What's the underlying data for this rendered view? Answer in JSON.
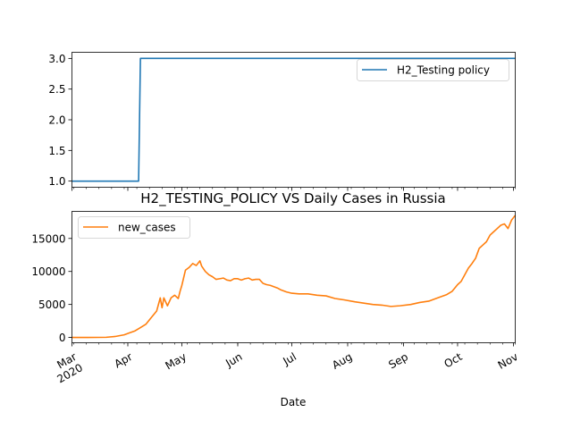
{
  "chart_data": [
    {
      "type": "line",
      "title": "",
      "xlabel": "",
      "ylabel": "",
      "ylim": [
        0.9,
        3.1
      ],
      "yticks": [
        1.0,
        1.5,
        2.0,
        2.5,
        3.0
      ],
      "ytick_labels": [
        "1.0",
        "1.5",
        "2.0",
        "2.5",
        "3.0"
      ],
      "legend_position": "upper right",
      "series": [
        {
          "name": "H2_Testing policy",
          "color": "#1f77b4",
          "x": [
            "2020-03-01",
            "2020-04-07",
            "2020-04-08",
            "2020-11-02"
          ],
          "values": [
            1,
            1,
            3,
            3
          ]
        }
      ]
    },
    {
      "type": "line",
      "title": "H2_TESTING_POLICY VS Daily Cases in Russia",
      "xlabel": "Date",
      "ylabel": "",
      "ylim": [
        -800,
        19100
      ],
      "yticks": [
        0,
        5000,
        10000,
        15000
      ],
      "ytick_labels": [
        "0",
        "5000",
        "10000",
        "15000"
      ],
      "x_range": [
        "2020-03-01",
        "2020-11-02"
      ],
      "x_major_ticks": [
        {
          "date": "2020-03-01",
          "label": "Mar\n2020"
        },
        {
          "date": "2020-04-01",
          "label": "Apr"
        },
        {
          "date": "2020-05-01",
          "label": "May"
        },
        {
          "date": "2020-06-01",
          "label": "Jun"
        },
        {
          "date": "2020-07-01",
          "label": "Jul"
        },
        {
          "date": "2020-08-01",
          "label": "Aug"
        },
        {
          "date": "2020-09-01",
          "label": "Sep"
        },
        {
          "date": "2020-10-01",
          "label": "Oct"
        },
        {
          "date": "2020-11-01",
          "label": "Nov"
        }
      ],
      "legend_position": "upper left",
      "series": [
        {
          "name": "new_cases",
          "color": "#ff7f0e",
          "x": [
            "2020-03-01",
            "2020-03-10",
            "2020-03-20",
            "2020-03-25",
            "2020-03-30",
            "2020-04-02",
            "2020-04-05",
            "2020-04-08",
            "2020-04-11",
            "2020-04-14",
            "2020-04-17",
            "2020-04-19",
            "2020-04-20",
            "2020-04-21",
            "2020-04-23",
            "2020-04-25",
            "2020-04-27",
            "2020-04-29",
            "2020-04-30",
            "2020-05-01",
            "2020-05-03",
            "2020-05-05",
            "2020-05-07",
            "2020-05-09",
            "2020-05-11",
            "2020-05-12",
            "2020-05-14",
            "2020-05-16",
            "2020-05-18",
            "2020-05-20",
            "2020-05-22",
            "2020-05-24",
            "2020-05-26",
            "2020-05-28",
            "2020-05-30",
            "2020-06-01",
            "2020-06-03",
            "2020-06-05",
            "2020-06-07",
            "2020-06-09",
            "2020-06-11",
            "2020-06-13",
            "2020-06-15",
            "2020-06-17",
            "2020-06-19",
            "2020-06-21",
            "2020-06-23",
            "2020-06-25",
            "2020-06-28",
            "2020-07-01",
            "2020-07-05",
            "2020-07-10",
            "2020-07-15",
            "2020-07-20",
            "2020-07-25",
            "2020-07-30",
            "2020-08-05",
            "2020-08-10",
            "2020-08-15",
            "2020-08-20",
            "2020-08-25",
            "2020-08-30",
            "2020-09-05",
            "2020-09-10",
            "2020-09-15",
            "2020-09-20",
            "2020-09-25",
            "2020-09-28",
            "2020-10-01",
            "2020-10-03",
            "2020-10-05",
            "2020-10-07",
            "2020-10-09",
            "2020-10-11",
            "2020-10-13",
            "2020-10-15",
            "2020-10-17",
            "2020-10-19",
            "2020-10-21",
            "2020-10-23",
            "2020-10-25",
            "2020-10-27",
            "2020-10-29",
            "2020-10-31",
            "2020-11-02"
          ],
          "values": [
            0,
            0,
            30,
            150,
            400,
            700,
            1000,
            1500,
            2000,
            3000,
            4000,
            6000,
            4500,
            6000,
            4800,
            6000,
            6400,
            5900,
            7000,
            7900,
            10200,
            10600,
            11200,
            10900,
            11600,
            10800,
            10000,
            9500,
            9200,
            8800,
            8900,
            9000,
            8700,
            8600,
            8900,
            8900,
            8700,
            8900,
            9000,
            8700,
            8800,
            8800,
            8200,
            8000,
            7900,
            7700,
            7500,
            7200,
            6900,
            6700,
            6600,
            6600,
            6400,
            6300,
            5900,
            5700,
            5400,
            5200,
            5000,
            4900,
            4700,
            4800,
            5000,
            5300,
            5500,
            6000,
            6500,
            7000,
            8000,
            8500,
            9500,
            10500,
            11200,
            12000,
            13500,
            14000,
            14500,
            15500,
            16000,
            16500,
            17000,
            17200,
            16500,
            17800,
            18500
          ]
        }
      ]
    }
  ]
}
